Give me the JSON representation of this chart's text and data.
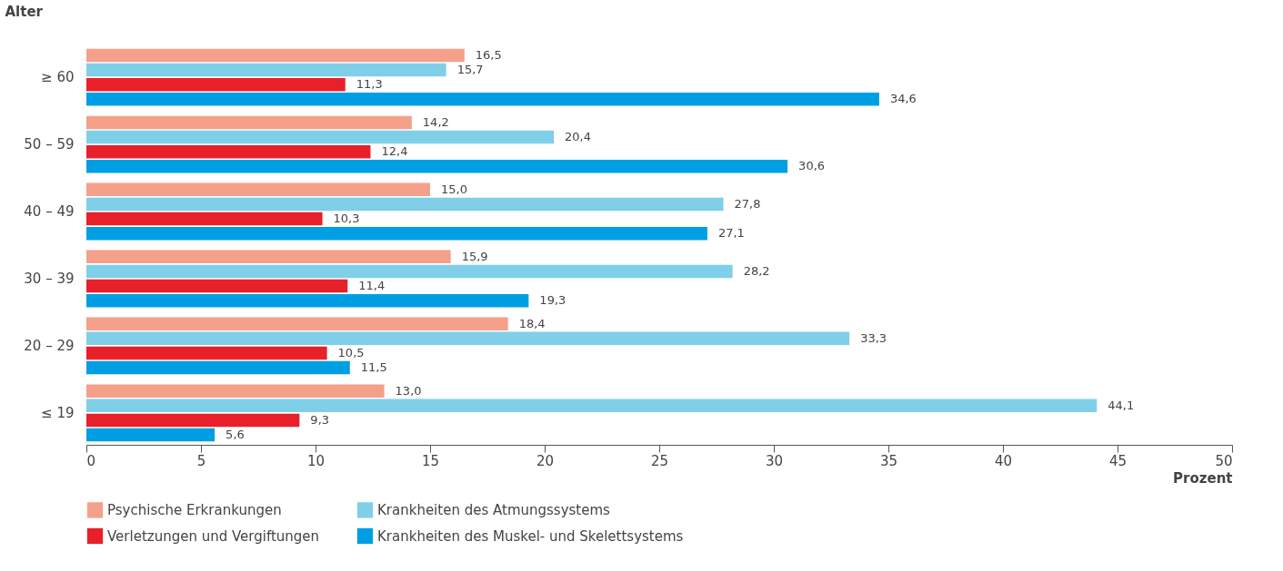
{
  "chart_data": {
    "type": "bar",
    "orientation": "horizontal",
    "ylabel": "Alter",
    "xlabel": "Prozent",
    "categories": [
      "≥ 60",
      "50 – 59",
      "40 – 49",
      "30 – 39",
      "20 – 29",
      "≤ 19"
    ],
    "series": [
      {
        "name": "Psychische Erkrankungen",
        "color": "#f4a08a",
        "values": [
          16.5,
          14.2,
          15.0,
          15.9,
          18.4,
          13.0
        ],
        "value_labels": [
          "16,5",
          "14,2",
          "15,0",
          "15,9",
          "18,4",
          "13,0"
        ]
      },
      {
        "name": "Krankheiten des Atmungssystems",
        "color": "#7fcfe9",
        "values": [
          15.7,
          20.4,
          27.8,
          28.2,
          33.3,
          44.1
        ],
        "value_labels": [
          "15,7",
          "20,4",
          "27,8",
          "28,2",
          "33,3",
          "44,1"
        ]
      },
      {
        "name": "Verletzungen und Vergiftungen",
        "color": "#e8202a",
        "values": [
          11.3,
          12.4,
          10.3,
          11.4,
          10.5,
          9.3
        ],
        "value_labels": [
          "11,3",
          "12,4",
          "10,3",
          "11,4",
          "10,5",
          "9,3"
        ]
      },
      {
        "name": "Krankheiten des Muskel- und Skelettsystems",
        "color": "#009fe3",
        "values": [
          34.6,
          30.6,
          27.1,
          19.3,
          11.5,
          5.6
        ],
        "value_labels": [
          "34,6",
          "30,6",
          "27,1",
          "19,3",
          "11,5",
          "5,6"
        ]
      }
    ],
    "xlim": [
      0,
      50
    ],
    "xticks": [
      0,
      5,
      10,
      15,
      20,
      25,
      30,
      35,
      40,
      45,
      50
    ],
    "grid": false,
    "legend": "bottom"
  }
}
